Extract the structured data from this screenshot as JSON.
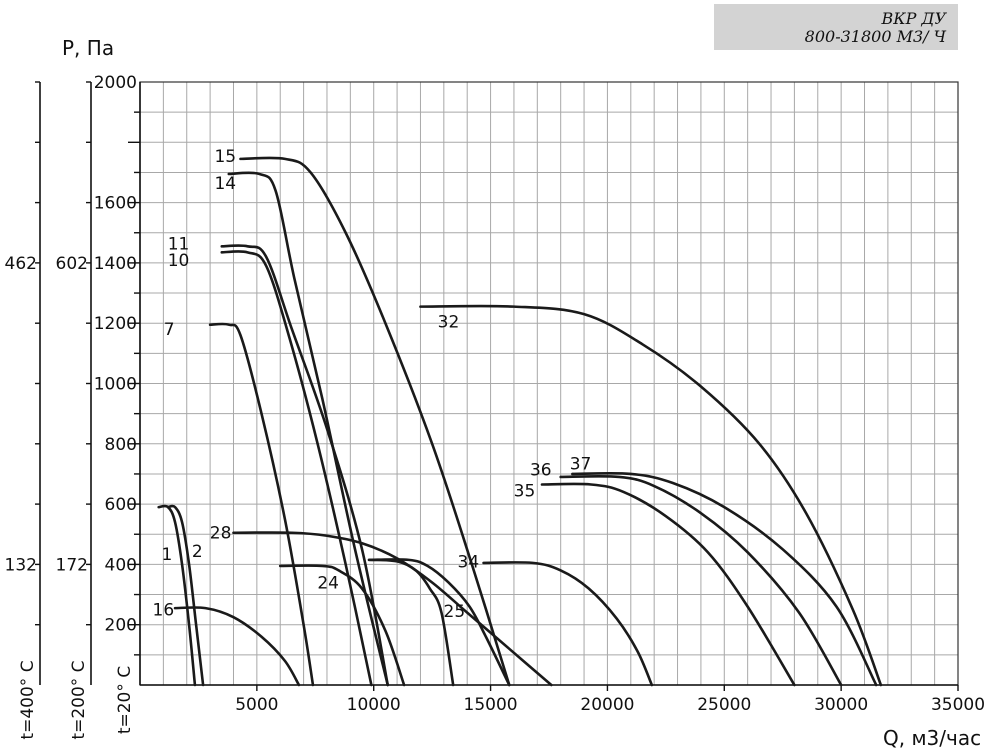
{
  "header": {
    "title_line1": "ВКР ДУ",
    "title_line2": "800-31800 М3/ Ч"
  },
  "chart_data": {
    "type": "line",
    "xlabel": "Q, м3/час",
    "ylabel": "P, Па",
    "xlim": [
      0,
      35000
    ],
    "ylim": [
      0,
      2000
    ],
    "x_ticks": [
      5000,
      10000,
      15000,
      20000,
      25000,
      30000,
      35000
    ],
    "y_ticks": [
      200,
      400,
      600,
      800,
      1000,
      1200,
      1400,
      1600,
      2000
    ],
    "grid": true,
    "temperature_axes": [
      {
        "label": "t=20° C",
        "ticks": []
      },
      {
        "label": "t=200° C",
        "ticks": [
          {
            "at": 1400,
            "text": "602"
          },
          {
            "at": 400,
            "text": "172"
          }
        ]
      },
      {
        "label": "t=400° C",
        "ticks": [
          {
            "at": 1400,
            "text": "462"
          },
          {
            "at": 400,
            "text": "132"
          }
        ]
      }
    ],
    "series": [
      {
        "name": "1",
        "x": [
          800,
          1200,
          1500,
          1800,
          2100,
          2350
        ],
        "y": [
          590,
          590,
          540,
          400,
          200,
          0
        ]
      },
      {
        "name": "2",
        "x": [
          1200,
          1500,
          1800,
          2100,
          2400,
          2700
        ],
        "y": [
          590,
          590,
          540,
          400,
          200,
          0
        ]
      },
      {
        "name": "16",
        "x": [
          1500,
          2800,
          4000,
          5200,
          6200,
          6800
        ],
        "y": [
          255,
          255,
          225,
          160,
          80,
          0
        ]
      },
      {
        "name": "7",
        "x": [
          3000,
          3800,
          4300,
          5200,
          6200,
          7000,
          7400
        ],
        "y": [
          1195,
          1195,
          1160,
          900,
          550,
          200,
          0
        ]
      },
      {
        "name": "10",
        "x": [
          3500,
          4600,
          5400,
          6400,
          7600,
          8800,
          9900
        ],
        "y": [
          1435,
          1435,
          1390,
          1150,
          800,
          400,
          0
        ]
      },
      {
        "name": "11",
        "x": [
          3500,
          4600,
          5400,
          6500,
          8000,
          9500,
          10600
        ],
        "y": [
          1455,
          1455,
          1420,
          1180,
          850,
          450,
          0
        ]
      },
      {
        "name": "14",
        "x": [
          3800,
          5100,
          5800,
          6600,
          7800,
          9200,
          10600
        ],
        "y": [
          1695,
          1695,
          1640,
          1350,
          950,
          450,
          0
        ]
      },
      {
        "name": "15",
        "x": [
          4300,
          6200,
          7300,
          8800,
          10500,
          12500,
          14200,
          15800
        ],
        "y": [
          1745,
          1745,
          1700,
          1500,
          1200,
          800,
          400,
          0
        ]
      },
      {
        "name": "28",
        "x": [
          4000,
          6500,
          8000,
          9500,
          11000,
          12500,
          14000,
          15800,
          17600
        ],
        "y": [
          505,
          505,
          495,
          470,
          420,
          340,
          240,
          120,
          0
        ]
      },
      {
        "name": "24",
        "x": [
          6000,
          7800,
          8500,
          9500,
          10500,
          11300
        ],
        "y": [
          395,
          395,
          380,
          320,
          180,
          0
        ]
      },
      {
        "name": "25",
        "x": [
          9800,
          11500,
          12300,
          13200,
          14100,
          14800,
          15800
        ],
        "y": [
          415,
          415,
          395,
          340,
          260,
          160,
          0
        ]
      },
      {
        "name": "25",
        "x": [
          9800,
          11000,
          11800,
          12400,
          12900,
          13400
        ],
        "y": [
          415,
          410,
          380,
          320,
          240,
          0
        ]
      },
      {
        "name": "32",
        "x": [
          12000,
          16000,
          19000,
          21500,
          24000,
          26500,
          28500,
          30500,
          31700
        ],
        "y": [
          1255,
          1255,
          1230,
          1130,
          990,
          800,
          570,
          250,
          0
        ]
      },
      {
        "name": "34",
        "x": [
          14700,
          16800,
          18000,
          19200,
          20400,
          21300,
          21900
        ],
        "y": [
          405,
          405,
          380,
          320,
          220,
          110,
          0
        ]
      },
      {
        "name": "35",
        "x": [
          17200,
          19300,
          20700,
          22500,
          24300,
          26000,
          28000
        ],
        "y": [
          665,
          665,
          640,
          560,
          440,
          260,
          0
        ]
      },
      {
        "name": "36",
        "x": [
          18000,
          20500,
          22000,
          24000,
          26000,
          28200,
          30000
        ],
        "y": [
          690,
          690,
          660,
          570,
          440,
          240,
          0
        ]
      },
      {
        "name": "37",
        "x": [
          18500,
          21000,
          22800,
          25000,
          27500,
          29800,
          31500
        ],
        "y": [
          700,
          700,
          670,
          590,
          450,
          260,
          0
        ]
      }
    ],
    "annotations": [
      {
        "text": "1",
        "x": 1150,
        "y": 435
      },
      {
        "text": "2",
        "x": 2450,
        "y": 445
      },
      {
        "text": "16",
        "x": 1000,
        "y": 250
      },
      {
        "text": "7",
        "x": 1250,
        "y": 1180
      },
      {
        "text": "10",
        "x": 1650,
        "y": 1410
      },
      {
        "text": "11",
        "x": 1650,
        "y": 1465
      },
      {
        "text": "14",
        "x": 3650,
        "y": 1665
      },
      {
        "text": "15",
        "x": 3650,
        "y": 1755
      },
      {
        "text": "28",
        "x": 3450,
        "y": 505
      },
      {
        "text": "24",
        "x": 8050,
        "y": 340
      },
      {
        "text": "25",
        "x": 13450,
        "y": 245
      },
      {
        "text": "32",
        "x": 13200,
        "y": 1205
      },
      {
        "text": "34",
        "x": 14050,
        "y": 410
      },
      {
        "text": "35",
        "x": 16450,
        "y": 645
      },
      {
        "text": "36",
        "x": 17150,
        "y": 715
      },
      {
        "text": "37",
        "x": 18850,
        "y": 735
      }
    ]
  }
}
